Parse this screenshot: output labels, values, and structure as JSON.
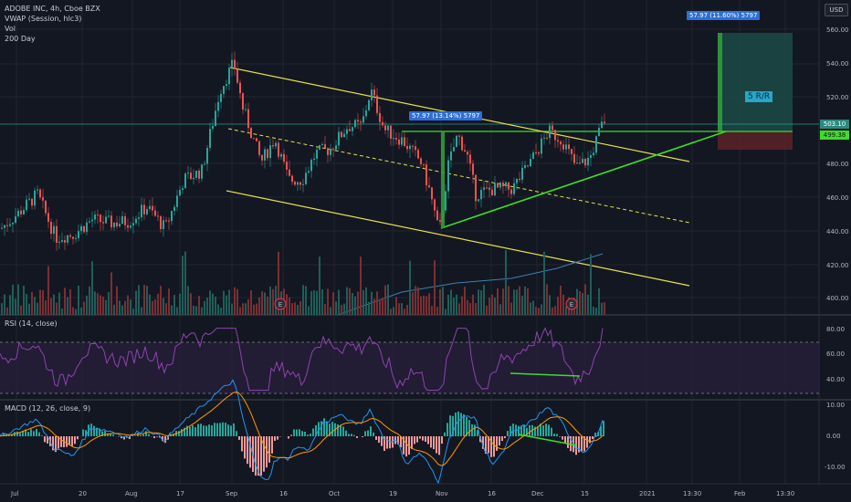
{
  "header": {
    "title": "ADOBE INC, 4h, Cboe BZX",
    "indicators": [
      "VWAP (Session, hlc3)",
      "Vol",
      "200 Day"
    ],
    "currency_button": "USD"
  },
  "annotations": {
    "measure_1": "57.97 (13.14%) 5797",
    "measure_2": "57.97 (11.60%) 5797",
    "risk_reward": "5 R/R"
  },
  "price_tags": {
    "last": "503.10",
    "target": "499.38"
  },
  "colors": {
    "background": "#131722",
    "up": "#26a69a",
    "down": "#ef5350",
    "trend_yellow": "#e8e04a",
    "support_green": "#3ddc2a",
    "rsi_line": "#8e44ad",
    "macd": "#2196f3",
    "signal": "#ff9800"
  },
  "price_axis": [
    "560.00",
    "540.00",
    "520.00",
    "500.00",
    "480.00",
    "460.00",
    "440.00",
    "420.00",
    "400.00"
  ],
  "rsi": {
    "label": "RSI (14, close)",
    "axis": [
      "80.00",
      "60.00",
      "40.00"
    ]
  },
  "macd": {
    "label": "MACD (12, 26, close, 9)",
    "axis": [
      "10.00",
      "0.00",
      "-10.00"
    ]
  },
  "time_axis": [
    "Jul",
    "20",
    "Aug",
    "17",
    "Sep",
    "16",
    "Oct",
    "19",
    "Nov",
    "16",
    "Dec",
    "15",
    "2021",
    "13:30",
    "Feb",
    "13:30"
  ],
  "earnings_markers": [
    "E",
    "E"
  ],
  "chart_data": {
    "type": "candlestick",
    "symbol": "ADOBE INC",
    "interval": "4h",
    "ylim": [
      395,
      570
    ],
    "close_path": [
      [
        0,
        443
      ],
      [
        20,
        452
      ],
      [
        40,
        462
      ],
      [
        60,
        438
      ],
      [
        80,
        440
      ],
      [
        100,
        448
      ],
      [
        120,
        446
      ],
      [
        140,
        447
      ],
      [
        160,
        455
      ],
      [
        180,
        443
      ],
      [
        200,
        470
      ],
      [
        220,
        475
      ],
      [
        240,
        520
      ],
      [
        255,
        535
      ],
      [
        265,
        510
      ],
      [
        285,
        480
      ],
      [
        300,
        493
      ],
      [
        315,
        470
      ],
      [
        330,
        470
      ],
      [
        345,
        485
      ],
      [
        360,
        487
      ],
      [
        380,
        500
      ],
      [
        395,
        500
      ],
      [
        405,
        520
      ],
      [
        420,
        498
      ],
      [
        440,
        492
      ],
      [
        460,
        480
      ],
      [
        470,
        463
      ],
      [
        480,
        440
      ],
      [
        490,
        478
      ],
      [
        500,
        495
      ],
      [
        510,
        485
      ],
      [
        520,
        462
      ],
      [
        540,
        465
      ],
      [
        560,
        465
      ],
      [
        580,
        480
      ],
      [
        600,
        497
      ],
      [
        615,
        492
      ],
      [
        630,
        477
      ],
      [
        645,
        482
      ],
      [
        660,
        503
      ]
    ]
  }
}
